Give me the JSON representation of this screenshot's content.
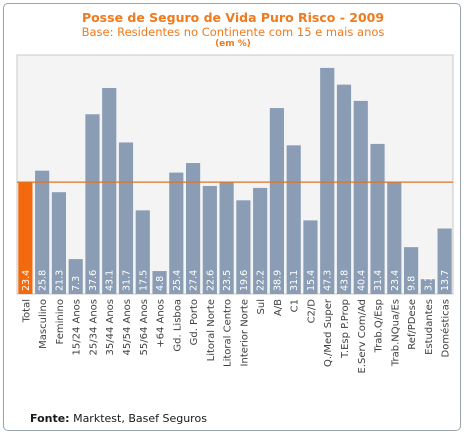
{
  "chart_data": {
    "type": "bar",
    "title": "Posse de Seguro de Vida Puro Risco - 2009",
    "subtitle": "Base: Residentes no Continente com 15 e mais anos",
    "unit_note": "(em %)",
    "categories": [
      "Total",
      "Masculino",
      "Feminino",
      "15/24 Anos",
      "25/34 Anos",
      "35/44 Anos",
      "45/54 Anos",
      "55/64 Anos",
      "+64 Anos",
      "Gd. Lisboa",
      "Gd. Porto",
      "Litoral Norte",
      "Litoral Centro",
      "Interior Norte",
      "Sul",
      "A/B",
      "C1",
      "C2/D",
      "Q./Med Super",
      "T.Esp P.Prop",
      "E.Serv Com/Ad",
      "Trab.Q/Esp",
      "Trab.NQua/Es",
      "Ref/PDese",
      "Estudantes",
      "Domésticas"
    ],
    "values": [
      23.4,
      25.8,
      21.3,
      7.3,
      37.6,
      43.1,
      31.7,
      17.5,
      4.8,
      25.4,
      27.4,
      22.6,
      23.5,
      19.6,
      22.2,
      38.9,
      31.1,
      15.4,
      47.3,
      43.8,
      40.4,
      31.4,
      23.4,
      9.8,
      3.1,
      13.7
    ],
    "value_labels": [
      "23.4",
      "25.8",
      "21.3",
      "7.3",
      "37.6",
      "43.1",
      "31.7",
      "17.5",
      "4.8",
      "25.4",
      "27.4",
      "22.6",
      "23.5",
      "19.6",
      "22.2",
      "38.9",
      "31.1",
      "15.4",
      "47.3",
      "43.8",
      "40.4",
      "31.4",
      "23.4",
      "9.8",
      "3.1",
      "13.7"
    ],
    "reference_line": 23.4,
    "ylim": [
      0,
      50
    ],
    "colors": {
      "highlight": "#f26a0d",
      "bars": "#8a9db5",
      "reference": "#e07420"
    }
  },
  "footer": {
    "source_label": "Fonte:",
    "source_text": "Marktest, Basef Seguros"
  }
}
